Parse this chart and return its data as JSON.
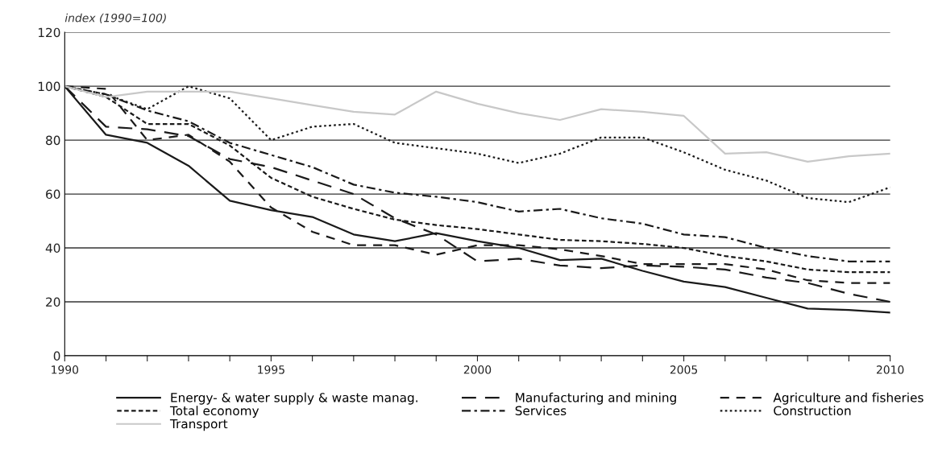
{
  "chart_data": {
    "type": "line",
    "ylabel": "index (1990=100)",
    "x": [
      1990,
      1991,
      1992,
      1993,
      1994,
      1995,
      1996,
      1997,
      1998,
      1999,
      2000,
      2001,
      2002,
      2003,
      2004,
      2005,
      2006,
      2007,
      2008,
      2009,
      2010
    ],
    "xlim": [
      1990,
      2010
    ],
    "xticks": [
      1990,
      {
        "value": 1991,
        "label": null
      },
      {
        "value": 1992,
        "label": null
      },
      {
        "value": 1993,
        "label": null
      },
      {
        "value": 1994,
        "label": null
      },
      1995,
      {
        "value": 1996,
        "label": null
      },
      {
        "value": 1997,
        "label": null
      },
      {
        "value": 1998,
        "label": null
      },
      {
        "value": 1999,
        "label": null
      },
      2000,
      {
        "value": 2001,
        "label": null
      },
      {
        "value": 2002,
        "label": null
      },
      {
        "value": 2003,
        "label": null
      },
      {
        "value": 2004,
        "label": null
      },
      2005,
      {
        "value": 2006,
        "label": null
      },
      {
        "value": 2007,
        "label": null
      },
      {
        "value": 2008,
        "label": null
      },
      {
        "value": 2009,
        "label": null
      },
      2010
    ],
    "ylim": [
      0,
      120
    ],
    "yticks": [
      0,
      20,
      40,
      60,
      80,
      100,
      120
    ],
    "grid": "y",
    "legend": "bottom",
    "marker": "none",
    "series": [
      {
        "name": "Energy- & water supply & waste manag.",
        "color": "#1a1a1a",
        "line_style": "solid",
        "values": [
          100,
          82,
          79,
          70.5,
          57.5,
          54,
          51.5,
          45,
          42.5,
          45.5,
          42.5,
          40,
          35.5,
          36,
          31.5,
          27.5,
          25.5,
          21.5,
          17.5,
          17,
          16
        ]
      },
      {
        "name": "Manufacturing and mining",
        "color": "#1a1a1a",
        "line_style": "long_dashed",
        "values": [
          100,
          85,
          84,
          81.5,
          73,
          70,
          65,
          60,
          51,
          45,
          35,
          36,
          33.5,
          32.5,
          33.5,
          33,
          32,
          29,
          27,
          23,
          20
        ]
      },
      {
        "name": "Agriculture and fisheries",
        "color": "#1a1a1a",
        "line_style": "dashed",
        "values": [
          100,
          99,
          80,
          82,
          72,
          55,
          46,
          41,
          41,
          37.5,
          41,
          41,
          39.5,
          37,
          34,
          34,
          34,
          32,
          28,
          27,
          27
        ]
      },
      {
        "name": "Total economy",
        "color": "#1a1a1a",
        "line_style": "short_dashed",
        "values": [
          100,
          96,
          86,
          86,
          78,
          66,
          59,
          54.5,
          50.5,
          48.5,
          47,
          45,
          43,
          42.5,
          41.5,
          40,
          37,
          35,
          32,
          31,
          31
        ]
      },
      {
        "name": "Services",
        "color": "#1a1a1a",
        "line_style": "dashdot",
        "values": [
          100,
          97,
          91,
          87,
          79,
          74.5,
          70,
          63.5,
          60.5,
          59,
          57,
          53.5,
          54.5,
          51,
          49,
          45,
          44,
          40,
          37,
          35,
          35
        ]
      },
      {
        "name": "Construction",
        "color": "#1a1a1a",
        "line_style": "dotted",
        "values": [
          100,
          97,
          91.5,
          100,
          95.5,
          80,
          85,
          86,
          79,
          77,
          75,
          71.5,
          75,
          81,
          81,
          75.5,
          69,
          65,
          58.5,
          57,
          62.5
        ]
      },
      {
        "name": "Transport",
        "color": "#c8c8c8",
        "line_style": "solid",
        "values": [
          100,
          96,
          98,
          98,
          98,
          95.5,
          93,
          90.5,
          89.5,
          98,
          93.5,
          90,
          87.5,
          91.5,
          90.5,
          89,
          75,
          75.5,
          72,
          74,
          75
        ]
      }
    ]
  }
}
